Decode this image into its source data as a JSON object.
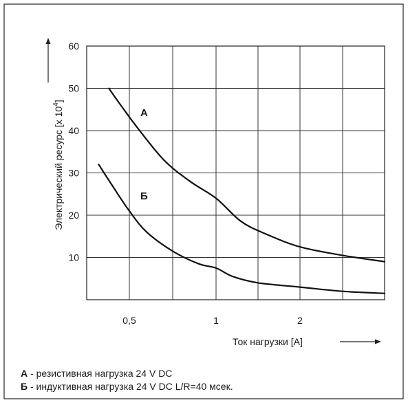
{
  "chart_data": {
    "type": "line",
    "xlabel": "Ток нагрузки  [А]",
    "ylabel_main": "Электрический ресурс [x 10",
    "ylabel_exp": "4",
    "ylabel_end": "]",
    "x_ticks": [
      {
        "value": 0.5,
        "label": "0,5"
      },
      {
        "value": 1,
        "label": "1"
      },
      {
        "value": 2,
        "label": "2"
      }
    ],
    "y_ticks": [
      {
        "value": 10,
        "label": "10"
      },
      {
        "value": 20,
        "label": "20"
      },
      {
        "value": 30,
        "label": "30"
      },
      {
        "value": 40,
        "label": "40"
      },
      {
        "value": 50,
        "label": "50"
      },
      {
        "value": 60,
        "label": "60"
      }
    ],
    "ylim": [
      0,
      60
    ],
    "grid": true,
    "series": [
      {
        "name": "А",
        "x": [
          0.38,
          0.45,
          0.55,
          0.7,
          0.85,
          1.0,
          1.3,
          1.6,
          2.0,
          2.5,
          3.0
        ],
        "y": [
          50,
          46,
          40.5,
          33,
          28,
          24,
          18.5,
          15.5,
          12.5,
          10.5,
          9
        ]
      },
      {
        "name": "Б",
        "x": [
          0.32,
          0.4,
          0.5,
          0.6,
          0.75,
          0.9,
          1.0,
          1.2,
          1.5,
          2.0,
          2.5,
          3.0
        ],
        "y": [
          32,
          27,
          21,
          16,
          11.5,
          8.5,
          7.5,
          5.5,
          4,
          3,
          2,
          1.5
        ]
      }
    ],
    "legend": [
      {
        "key": "А",
        "text": " - резистивная нагрузка 24 V DC"
      },
      {
        "key": "Б",
        "text": " - индуктивная нагрузка 24 V DC L/R=40 мсек."
      }
    ]
  }
}
